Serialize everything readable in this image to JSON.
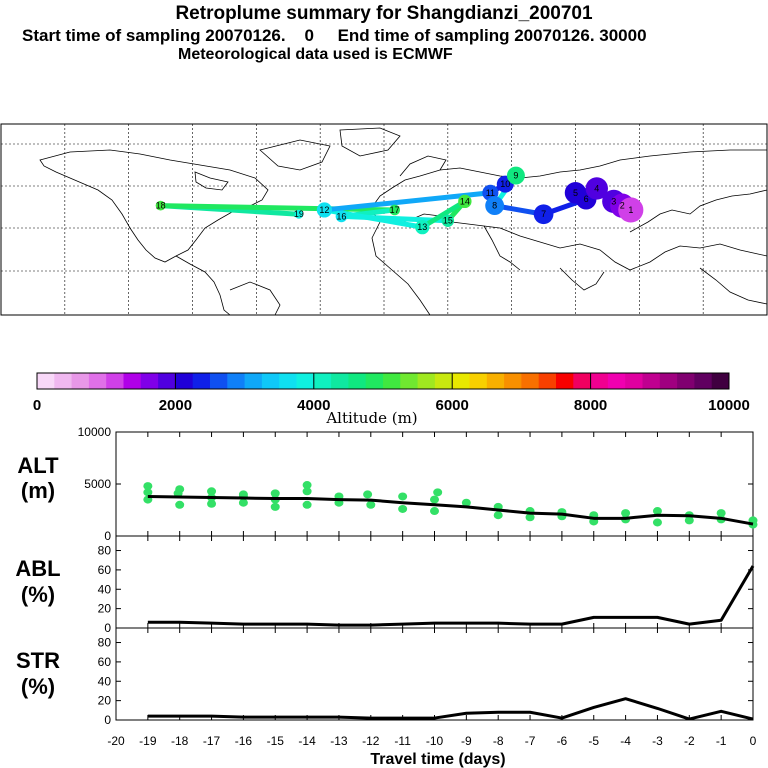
{
  "header": {
    "title": "Retroplume summary for Shangdianzi_200701",
    "subtitle_line1": "Start time of sampling 20070126.    0     End time of sampling 20070126. 30000",
    "subtitle_line2": "Meteorological data used is ECMWF"
  },
  "chart_data": [
    {
      "type": "map",
      "name": "retroplume-map",
      "description_labels": [
        "19",
        "18",
        "17",
        "16",
        "15",
        "14",
        "13",
        "12",
        "11",
        "10",
        "9",
        "8",
        "7",
        "6",
        "5",
        "4",
        "3",
        "2",
        "1"
      ],
      "clusters": [
        {
          "label": "19",
          "lon": -40,
          "lat": 38,
          "alt": 3800
        },
        {
          "label": "18",
          "lon": -105,
          "lat": 42,
          "alt": 5000
        },
        {
          "label": "17",
          "lon": 5,
          "lat": 40,
          "alt": 4800
        },
        {
          "label": "16",
          "lon": -20,
          "lat": 37,
          "alt": 3600
        },
        {
          "label": "15",
          "lon": 30,
          "lat": 35,
          "alt": 4300
        },
        {
          "label": "14",
          "lon": 38,
          "lat": 44,
          "alt": 5200
        },
        {
          "label": "13",
          "lon": 18,
          "lat": 32,
          "alt": 4000
        },
        {
          "label": "12",
          "lon": -28,
          "lat": 40,
          "alt": 3700
        },
        {
          "label": "11",
          "lon": 50,
          "lat": 48,
          "alt": 2600
        },
        {
          "label": "10",
          "lon": 57,
          "lat": 52,
          "alt": 2300
        },
        {
          "label": "9",
          "lon": 62,
          "lat": 56,
          "alt": 4700
        },
        {
          "label": "8",
          "lon": 52,
          "lat": 42,
          "alt": 2800
        },
        {
          "label": "7",
          "lon": 75,
          "lat": 38,
          "alt": 2400
        },
        {
          "label": "6",
          "lon": 95,
          "lat": 45,
          "alt": 2100
        },
        {
          "label": "5",
          "lon": 90,
          "lat": 48,
          "alt": 2000
        },
        {
          "label": "4",
          "lon": 100,
          "lat": 50,
          "alt": 1900
        },
        {
          "label": "3",
          "lon": 108,
          "lat": 44,
          "alt": 1800
        },
        {
          "label": "2",
          "lon": 112,
          "lat": 42,
          "alt": 1500
        },
        {
          "label": "1",
          "lon": 116,
          "lat": 40,
          "alt": 1200
        }
      ]
    },
    {
      "type": "colorbar",
      "name": "altitude-colorbar",
      "title": "Altitude (m)",
      "tick_labels": [
        "0",
        "2000",
        "4000",
        "6000",
        "8000",
        "10000"
      ],
      "min": 0,
      "max": 10000,
      "colors": [
        "#f8d8f8",
        "#f0b8f0",
        "#e898e8",
        "#e070e8",
        "#d040e8",
        "#b000e8",
        "#8000e8",
        "#5000e0",
        "#2000d8",
        "#1020e8",
        "#1050f0",
        "#1080f8",
        "#10a8f8",
        "#10c8f8",
        "#10e0f0",
        "#10f0e0",
        "#10f0c0",
        "#10e8a0",
        "#10e880",
        "#20e860",
        "#40e840",
        "#70e830",
        "#a0e820",
        "#c8e810",
        "#e8e800",
        "#f8d000",
        "#f8b000",
        "#f89000",
        "#f87000",
        "#f84000",
        "#f80000",
        "#f00060",
        "#f00090",
        "#f000b0",
        "#e000a0",
        "#c00090",
        "#a00080",
        "#800070",
        "#600060",
        "#400040"
      ]
    },
    {
      "type": "line",
      "name": "ALT",
      "ylabel_line1": "ALT",
      "ylabel_line2": "(m)",
      "ylim": [
        0,
        10000
      ],
      "ytick_labels": [
        "0",
        "5000",
        "10000"
      ],
      "yticks": [
        0,
        5000,
        10000
      ],
      "x": [
        -19,
        -18,
        -17,
        -16,
        -15,
        -14,
        -13,
        -12,
        -11,
        -10,
        -9,
        -8,
        -7,
        -6,
        -5,
        -4,
        -3,
        -2,
        -1,
        0
      ],
      "values": [
        3800,
        3750,
        3700,
        3650,
        3600,
        3600,
        3500,
        3450,
        3200,
        3000,
        2800,
        2500,
        2200,
        2100,
        1700,
        1700,
        2000,
        1950,
        1700,
        1150
      ],
      "scatter": [
        [
          -19,
          4200
        ],
        [
          -19,
          3500
        ],
        [
          -19,
          4800
        ],
        [
          -18.05,
          4100
        ],
        [
          -18,
          3000
        ],
        [
          -18,
          4500
        ],
        [
          -17,
          4300
        ],
        [
          -17,
          3100
        ],
        [
          -17,
          3700
        ],
        [
          -16,
          4000
        ],
        [
          -16,
          3200
        ],
        [
          -16,
          3800
        ],
        [
          -15,
          4100
        ],
        [
          -15,
          2800
        ],
        [
          -15,
          3500
        ],
        [
          -14,
          4900
        ],
        [
          -14,
          3000
        ],
        [
          -14,
          4300
        ],
        [
          -13,
          3800
        ],
        [
          -13,
          3200
        ],
        [
          -12.1,
          4000
        ],
        [
          -12,
          3000
        ],
        [
          -11,
          3800
        ],
        [
          -11,
          2600
        ],
        [
          -10,
          3500
        ],
        [
          -10,
          2400
        ],
        [
          -9.9,
          4200
        ],
        [
          -9,
          3200
        ],
        [
          -8,
          2800
        ],
        [
          -8,
          2000
        ],
        [
          -7,
          2400
        ],
        [
          -7,
          1800
        ],
        [
          -6,
          1900
        ],
        [
          -6,
          2300
        ],
        [
          -5,
          2000
        ],
        [
          -5,
          1400
        ],
        [
          -4,
          2200
        ],
        [
          -4,
          1600
        ],
        [
          -3,
          2400
        ],
        [
          -3,
          1300
        ],
        [
          -2,
          2000
        ],
        [
          -2,
          1500
        ],
        [
          -1,
          2200
        ],
        [
          -1,
          1600
        ],
        [
          0,
          1100
        ],
        [
          0,
          1500
        ]
      ]
    },
    {
      "type": "line",
      "name": "ABL",
      "ylabel_line1": "ABL",
      "ylabel_line2": "(%)",
      "ylim": [
        0,
        95
      ],
      "ytick_labels": [
        "0",
        "20",
        "40",
        "60",
        "80"
      ],
      "yticks": [
        0,
        20,
        40,
        60,
        80
      ],
      "x": [
        -19,
        -18,
        -17,
        -16,
        -15,
        -14,
        -13,
        -12,
        -11,
        -10,
        -9,
        -8,
        -7,
        -6,
        -5,
        -4,
        -3,
        -2,
        -1,
        0
      ],
      "values": [
        6,
        6,
        5,
        4,
        4,
        4,
        3,
        3,
        4,
        5,
        5,
        5,
        4,
        4,
        11,
        11,
        11,
        4,
        8,
        64
      ]
    },
    {
      "type": "line",
      "name": "STR",
      "ylabel_line1": "STR",
      "ylabel_line2": "(%)",
      "xlabel": "Travel time (days)",
      "ylim": [
        0,
        95
      ],
      "ytick_labels": [
        "0",
        "20",
        "40",
        "60",
        "80"
      ],
      "yticks": [
        0,
        20,
        40,
        60,
        80
      ],
      "xtick_labels": [
        "-20",
        "-19",
        "-18",
        "-17",
        "-16",
        "-15",
        "-14",
        "-13",
        "-12",
        "-11",
        "-10",
        "-9",
        "-8",
        "-7",
        "-6",
        "-5",
        "-4",
        "-3",
        "-2",
        "-1",
        "0"
      ],
      "xticks": [
        -20,
        -19,
        -18,
        -17,
        -16,
        -15,
        -14,
        -13,
        -12,
        -11,
        -10,
        -9,
        -8,
        -7,
        -6,
        -5,
        -4,
        -3,
        -2,
        -1,
        0
      ],
      "x": [
        -19,
        -18,
        -17,
        -16,
        -15,
        -14,
        -13,
        -12,
        -11,
        -10,
        -9,
        -8,
        -7,
        -6,
        -5,
        -4,
        -3,
        -2,
        -1,
        0
      ],
      "values": [
        4,
        4,
        4,
        3,
        3,
        3,
        3,
        2,
        2,
        2,
        7,
        8,
        8,
        2,
        13,
        22,
        12,
        1,
        9,
        1
      ]
    }
  ]
}
